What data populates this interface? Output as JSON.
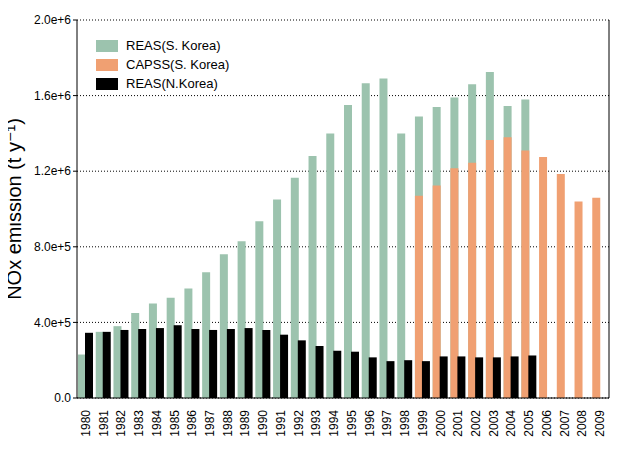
{
  "chart_data": {
    "type": "bar",
    "ylabel": "NOx emission (t y⁻¹)",
    "categories": [
      "1980",
      "1981",
      "1982",
      "1983",
      "1984",
      "1985",
      "1986",
      "1987",
      "1988",
      "1989",
      "1990",
      "1991",
      "1992",
      "1993",
      "1994",
      "1995",
      "1996",
      "1997",
      "1998",
      "1999",
      "2000",
      "2001",
      "2002",
      "2003",
      "2004",
      "2005",
      "2006",
      "2007",
      "2008",
      "2009"
    ],
    "series": [
      {
        "name": "REAS(S. Korea)",
        "color": "#9cc3ae",
        "values": [
          230000,
          350000,
          380000,
          450000,
          500000,
          530000,
          580000,
          665000,
          760000,
          830000,
          935000,
          1050000,
          1165000,
          1280000,
          1400000,
          1550000,
          1665000,
          1690000,
          1400000,
          1490000,
          1540000,
          1590000,
          1660000,
          1725000,
          1545000,
          1580000,
          null,
          null,
          null,
          null
        ]
      },
      {
        "name": "CAPSS(S. Korea)",
        "color": "#f0a072",
        "values": [
          null,
          null,
          null,
          null,
          null,
          null,
          null,
          null,
          null,
          null,
          null,
          null,
          null,
          null,
          null,
          null,
          null,
          null,
          null,
          1070000,
          1125000,
          1215000,
          1245000,
          1365000,
          1380000,
          1310000,
          1275000,
          1185000,
          1040000,
          1060000
        ]
      },
      {
        "name": "REAS(N.Korea)",
        "color": "#000000",
        "values": [
          345000,
          350000,
          360000,
          365000,
          370000,
          385000,
          365000,
          360000,
          365000,
          370000,
          360000,
          335000,
          305000,
          275000,
          250000,
          245000,
          215000,
          195000,
          200000,
          195000,
          220000,
          220000,
          215000,
          215000,
          220000,
          225000,
          null,
          null,
          null,
          null
        ]
      }
    ],
    "ylim": [
      0,
      2000000
    ],
    "yticks": [
      {
        "value": 0,
        "label": "0.0"
      },
      {
        "value": 400000,
        "label": "4.0e+5"
      },
      {
        "value": 800000,
        "label": "8.0e+5"
      },
      {
        "value": 1200000,
        "label": "1.2e+6"
      },
      {
        "value": 1600000,
        "label": "1.6e+6"
      },
      {
        "value": 2000000,
        "label": "2.0e+6"
      }
    ],
    "grid": true,
    "legend": "upper left"
  }
}
